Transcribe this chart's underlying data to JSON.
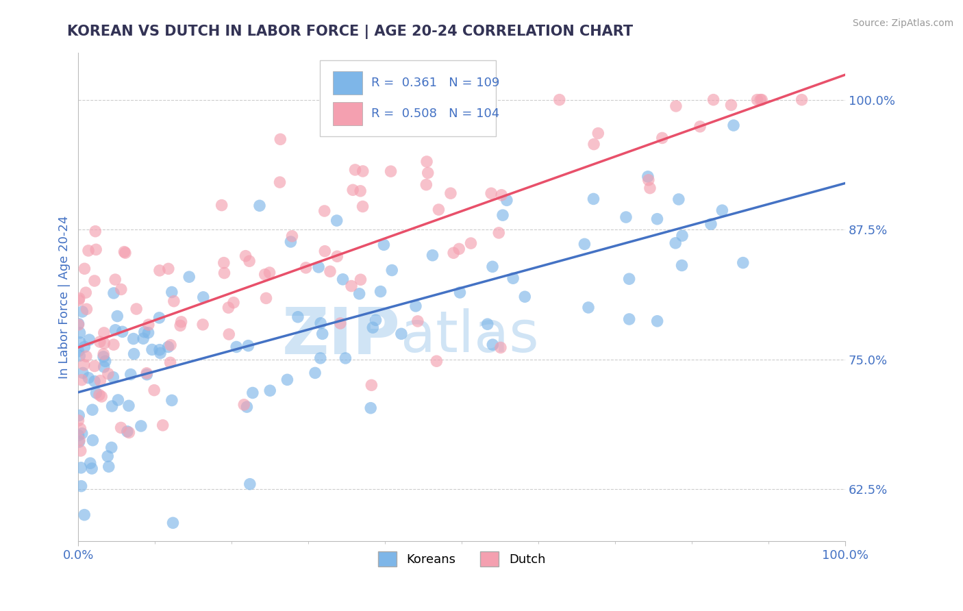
{
  "title": "KOREAN VS DUTCH IN LABOR FORCE | AGE 20-24 CORRELATION CHART",
  "source_text": "Source: ZipAtlas.com",
  "ylabel": "In Labor Force | Age 20-24",
  "xlim": [
    0.0,
    1.0
  ],
  "ylim": [
    0.575,
    1.045
  ],
  "yticks": [
    0.625,
    0.75,
    0.875,
    1.0
  ],
  "ytick_labels": [
    "62.5%",
    "75.0%",
    "87.5%",
    "100.0%"
  ],
  "korean_R": 0.361,
  "korean_N": 109,
  "dutch_R": 0.508,
  "dutch_N": 104,
  "korean_color": "#7eb6e8",
  "dutch_color": "#f4a0b0",
  "korean_line_color": "#4472c4",
  "dutch_line_color": "#e8506a",
  "watermark_color": "#d0e4f5",
  "background_color": "#ffffff",
  "grid_color": "#cccccc",
  "title_color": "#333355",
  "axis_label_color": "#4472c4",
  "tick_color": "#4472c4",
  "source_color": "#999999"
}
